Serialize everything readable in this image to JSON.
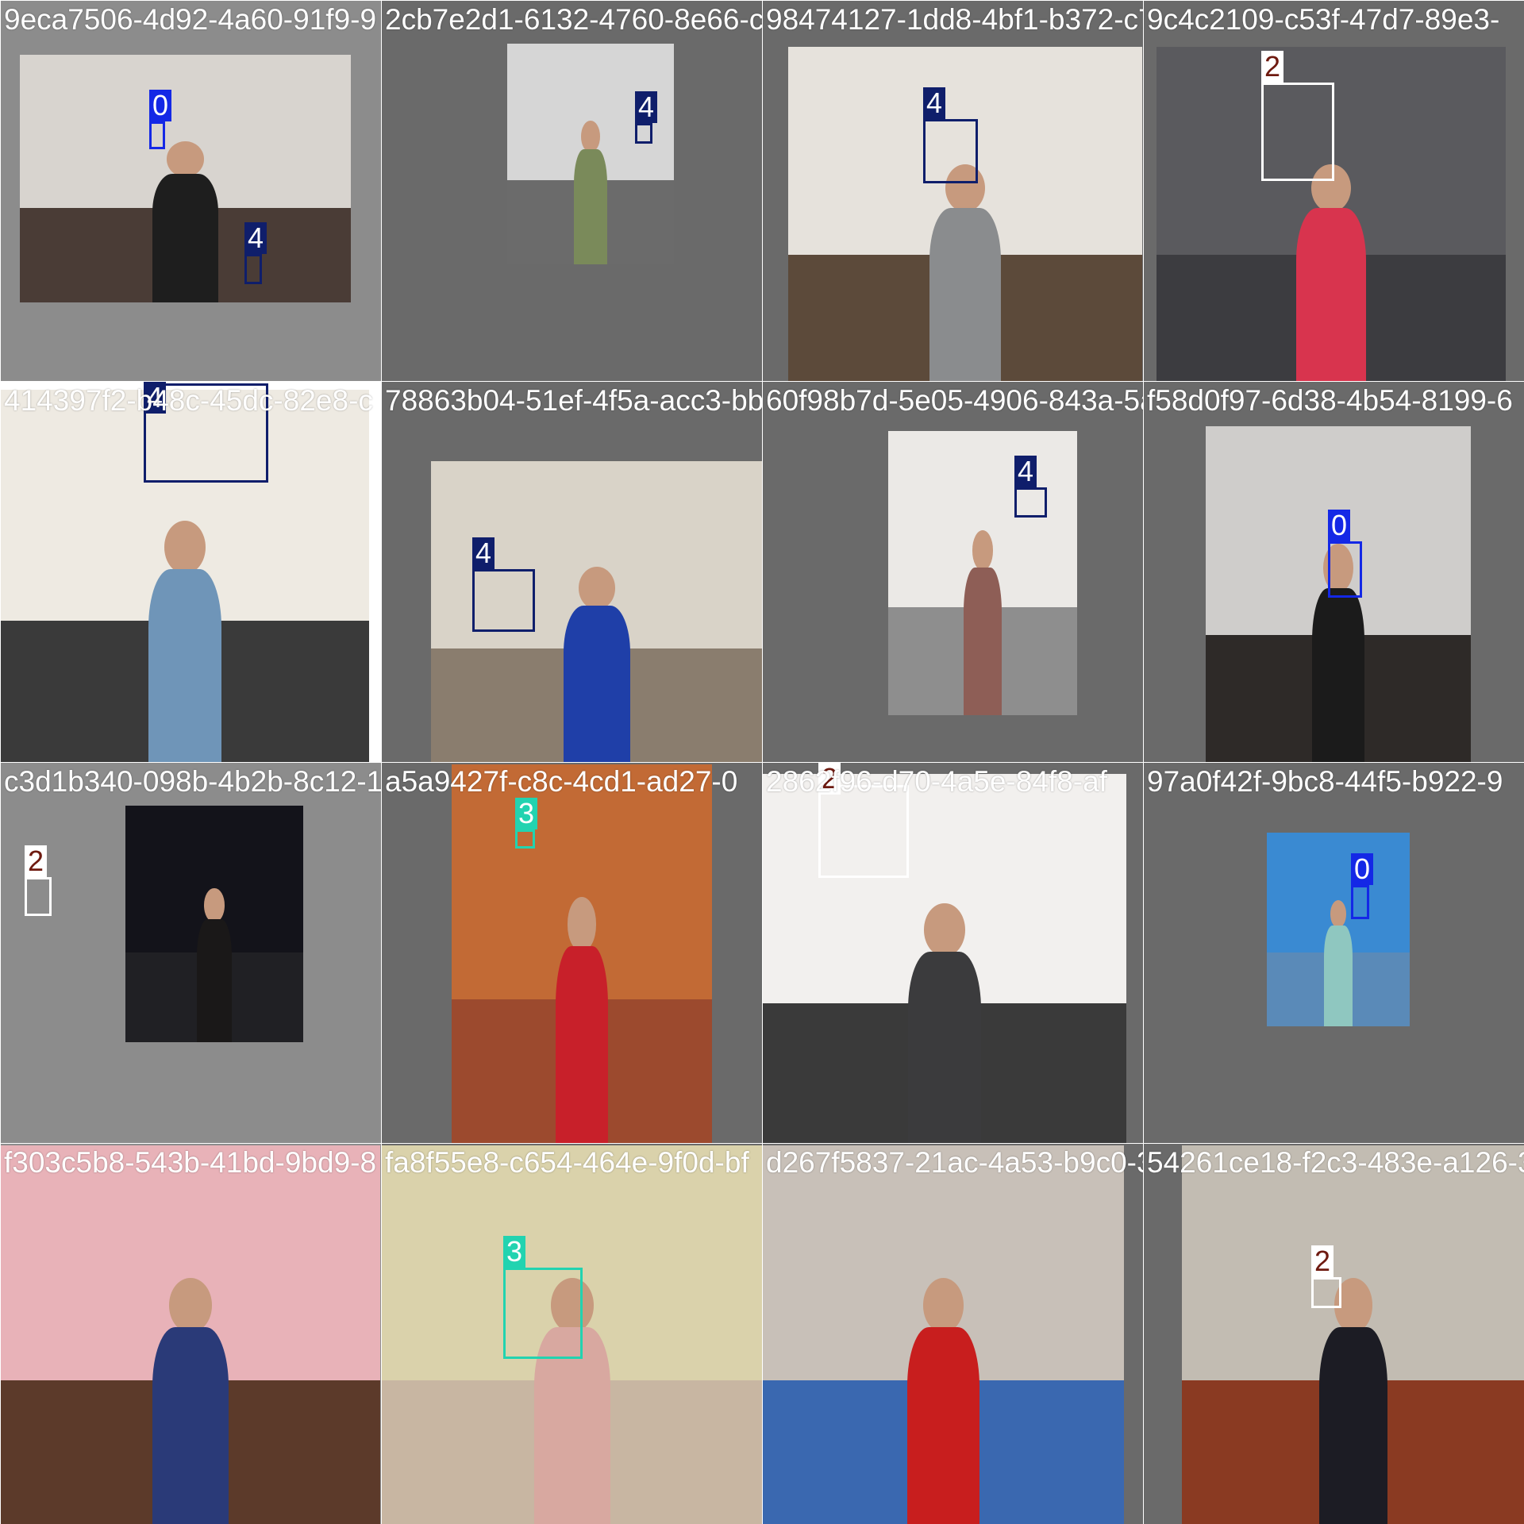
{
  "class_colors": {
    "0": {
      "box": "#1428e6",
      "label_bg": "#1428e6",
      "label_fg": "#ffffff"
    },
    "2": {
      "box": "#ffffff",
      "label_bg": "#ffffff",
      "label_fg": "#6e1a10"
    },
    "3": {
      "box": "#22d3b0",
      "label_bg": "#22d3b0",
      "label_fg": "#ffffff"
    },
    "4": {
      "box": "#0f1e6b",
      "label_bg": "#0f1e6b",
      "label_fg": "#ffffff"
    }
  },
  "tiles": [
    {
      "filename": "9eca7506-4d92-4a60-91f9-9",
      "canvas_color": "#8c8c8c",
      "photo": {
        "wall": "#d8d4cf",
        "floor": "#4a3c36",
        "torso": "#1e1e1e"
      },
      "detections": [
        {
          "cls": "0"
        },
        {
          "cls": "4"
        }
      ]
    },
    {
      "filename": "2cb7e2d1-6132-4760-8e66-c",
      "canvas_color": "#6a6a6a",
      "photo": {
        "wall": "#d6d6d6",
        "floor": "#6b6b6b",
        "torso": "#7a8a5a"
      },
      "detections": [
        {
          "cls": "4"
        }
      ]
    },
    {
      "filename": "98474127-1dd8-4bf1-b372-c7",
      "canvas_color": "#6a6a6a",
      "photo": {
        "wall": "#e6e2dc",
        "floor": "#5c4a3a",
        "torso": "#8a8c8e"
      },
      "detections": [
        {
          "cls": "4"
        }
      ]
    },
    {
      "filename": "9c4c2109-c53f-47d7-89e3-",
      "canvas_color": "#6a6a6a",
      "photo": {
        "wall": "#5a5a5e",
        "floor": "#3c3c40",
        "torso": "#d8344e"
      },
      "detections": [
        {
          "cls": "2"
        }
      ]
    },
    {
      "filename": "414397f2-b48c-45dc-82e8-c",
      "canvas_color": "#ffffff",
      "photo": {
        "wall": "#eeeae2",
        "floor": "#3a3a3a",
        "torso": "#6f95b8"
      },
      "detections": [
        {
          "cls": "4"
        }
      ]
    },
    {
      "filename": "78863b04-51ef-4f5a-acc3-bb",
      "canvas_color": "#6a6a6a",
      "photo": {
        "wall": "#d9d3c8",
        "floor": "#8a7d6e",
        "torso": "#1f3fa8"
      },
      "detections": [
        {
          "cls": "4"
        }
      ]
    },
    {
      "filename": "60f98b7d-5e05-4906-843a-5a",
      "canvas_color": "#6a6a6a",
      "photo": {
        "wall": "#ebe9e6",
        "floor": "#8e8e8e",
        "torso": "#8e5e56"
      },
      "detections": [
        {
          "cls": "4"
        }
      ]
    },
    {
      "filename": "f58d0f97-6d38-4b54-8199-6",
      "canvas_color": "#6a6a6a",
      "photo": {
        "wall": "#cfcdcb",
        "floor": "#2e2a28",
        "torso": "#1b1b1b"
      },
      "detections": [
        {
          "cls": "0"
        }
      ]
    },
    {
      "filename": "c3d1b340-098b-4b2b-8c12-1",
      "canvas_color": "#8c8c8c",
      "photo": {
        "wall": "#13131a",
        "floor": "#202024",
        "torso": "#1a1818"
      },
      "detections": [
        {
          "cls": "2"
        }
      ]
    },
    {
      "filename": "a5a9427f-c8c-4cd1-ad27-0",
      "canvas_color": "#6a6a6a",
      "photo": {
        "wall": "#c26a35",
        "floor": "#9c4a2e",
        "torso": "#c8202a"
      },
      "detections": [
        {
          "cls": "3"
        }
      ]
    },
    {
      "filename": "2862f96-d70-4a5e-84f8-af",
      "canvas_color": "#6a6a6a",
      "photo": {
        "wall": "#f2f0ee",
        "floor": "#3a3a3a",
        "torso": "#3b3b3d"
      },
      "detections": [
        {
          "cls": "2"
        }
      ]
    },
    {
      "filename": "97a0f42f-9bc8-44f5-b922-9",
      "canvas_color": "#6a6a6a",
      "photo": {
        "wall": "#3a8ad2",
        "floor": "#5a8ab8",
        "torso": "#8fc7c0"
      },
      "detections": [
        {
          "cls": "0"
        }
      ]
    },
    {
      "filename": "f303c5b8-543b-41bd-9bd9-8",
      "canvas_color": "#8c8c8c",
      "photo": {
        "wall": "#e8b2b8",
        "floor": "#5c3a2a",
        "torso": "#2a3a78"
      },
      "detections": []
    },
    {
      "filename": "fa8f55e8-c654-464e-9f0d-bf",
      "canvas_color": "#6a6a6a",
      "photo": {
        "wall": "#dad2ab",
        "floor": "#c8b6a2",
        "torso": "#d8a8a0"
      },
      "detections": [
        {
          "cls": "3"
        }
      ]
    },
    {
      "filename": "d267f5837-21ac-4a53-b9c0-3",
      "canvas_color": "#6a6a6a",
      "photo": {
        "wall": "#c8c0b8",
        "floor": "#3a68b0",
        "torso": "#c81e1e"
      },
      "detections": []
    },
    {
      "filename": "54261ce18-f2c3-483e-a126-3",
      "canvas_color": "#6a6a6a",
      "photo": {
        "wall": "#c2bcb2",
        "floor": "#8a3a22",
        "torso": "#1c1c24"
      },
      "detections": [
        {
          "cls": "2"
        }
      ]
    }
  ]
}
